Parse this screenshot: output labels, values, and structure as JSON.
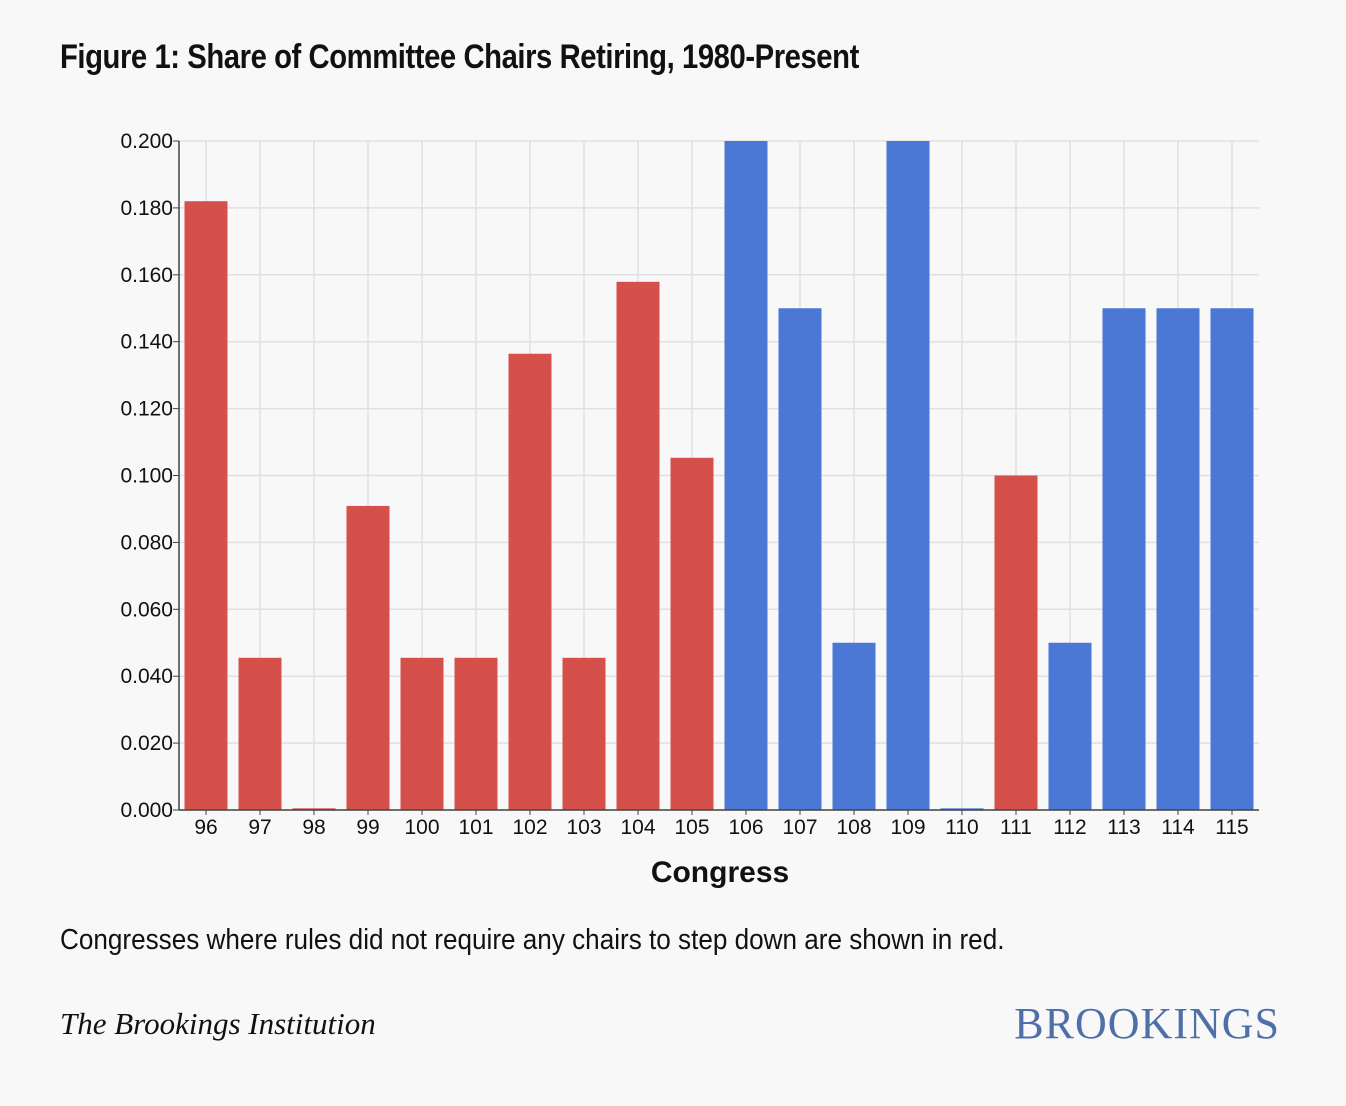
{
  "title": "Figure 1: Share of Committee Chairs Retiring, 1980-Present",
  "note": "Congresses where rules did not require any chairs to step down are shown in red.",
  "source": "The Brookings Institution",
  "logo_text": "BROOKINGS",
  "colors": {
    "no_rule": "#d5504b",
    "rule": "#4a78d4",
    "grid": "#e0e0e0",
    "axis": "#444444"
  },
  "chart_data": {
    "type": "bar",
    "title": "Figure 1: Share of Committee Chairs Retiring, 1980-Present",
    "xlabel": "Congress",
    "ylabel": "",
    "ylim": [
      0,
      0.2
    ],
    "yticks": [
      "0.000",
      "0.020",
      "0.040",
      "0.060",
      "0.080",
      "0.100",
      "0.120",
      "0.140",
      "0.160",
      "0.180",
      "0.200"
    ],
    "categories": [
      "96",
      "97",
      "98",
      "99",
      "100",
      "101",
      "102",
      "103",
      "104",
      "105",
      "106",
      "107",
      "108",
      "109",
      "110",
      "111",
      "112",
      "113",
      "114",
      "115"
    ],
    "values": [
      0.182,
      0.0455,
      0.0005,
      0.0909,
      0.0455,
      0.0455,
      0.1364,
      0.0455,
      0.1579,
      0.1053,
      0.2,
      0.15,
      0.05,
      0.2,
      0.0005,
      0.1,
      0.05,
      0.15,
      0.15,
      0.15
    ],
    "rule_required": [
      false,
      false,
      false,
      false,
      false,
      false,
      false,
      false,
      false,
      false,
      true,
      true,
      true,
      true,
      true,
      false,
      true,
      true,
      true,
      true
    ],
    "grid": true,
    "legend": "none"
  }
}
